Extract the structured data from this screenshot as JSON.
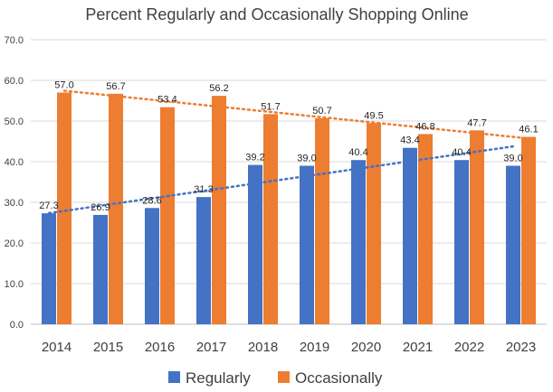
{
  "chart_data": {
    "type": "bar",
    "title": "Percent Regularly and Occasionally Shopping Online",
    "categories": [
      "2014",
      "2015",
      "2016",
      "2017",
      "2018",
      "2019",
      "2020",
      "2021",
      "2022",
      "2023"
    ],
    "series": [
      {
        "name": "Regularly",
        "color": "#4472C4",
        "values": [
          27.3,
          26.9,
          28.6,
          31.3,
          39.2,
          39.0,
          40.4,
          43.4,
          40.4,
          39.0
        ],
        "labels": [
          "27.3",
          "26.9",
          "28.6",
          "31.3",
          "39.2",
          "39.0",
          "40.4",
          "43.4",
          "40.4",
          "39.0"
        ],
        "trendline": {
          "type": "linear",
          "style": "dotted"
        }
      },
      {
        "name": "Occasionally",
        "color": "#ED7D31",
        "values": [
          57.0,
          56.7,
          53.4,
          56.2,
          51.7,
          50.7,
          49.5,
          46.8,
          47.7,
          46.1
        ],
        "labels": [
          "57.0",
          "56.7",
          "53.4",
          "56.2",
          "51.7",
          "50.7",
          "49.5",
          "46.8",
          "47.7",
          "46.1"
        ],
        "trendline": {
          "type": "linear",
          "style": "dotted"
        }
      }
    ],
    "ylim": [
      0,
      70
    ],
    "yticks": [
      "0.0",
      "10.0",
      "20.0",
      "30.0",
      "40.0",
      "50.0",
      "60.0",
      "70.0"
    ],
    "grid": true,
    "legend": "bottom"
  }
}
